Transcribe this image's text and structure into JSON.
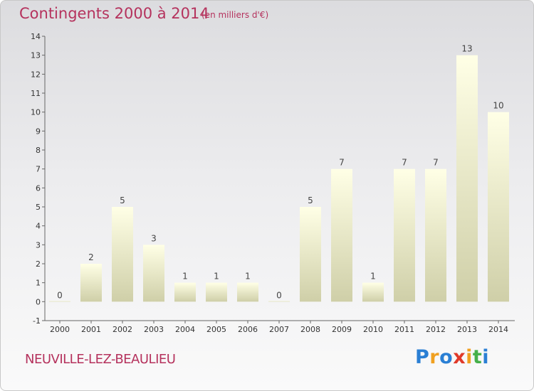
{
  "title": "Contingents 2000 à 2014",
  "unit": "(en milliers d'€)",
  "place": "NEUVILLE-LEZ-BEAULIEU",
  "logo": {
    "letters": [
      "P",
      "r",
      "o",
      "x",
      "i",
      "t",
      "i"
    ],
    "colors": [
      "#2a7fd4",
      "#f0a020",
      "#2a7fd4",
      "#e03a2a",
      "#f0a020",
      "#46b04a",
      "#2a7fd4"
    ]
  },
  "colors": {
    "bar_top": "#ffffe6",
    "bar_bottom": "#cfcfa8",
    "title": "#b5325d"
  },
  "chart_data": {
    "type": "bar",
    "categories": [
      "2000",
      "2001",
      "2002",
      "2003",
      "2004",
      "2005",
      "2006",
      "2007",
      "2008",
      "2009",
      "2010",
      "2011",
      "2012",
      "2013",
      "2014"
    ],
    "values": [
      0,
      2,
      5,
      3,
      1,
      1,
      1,
      0,
      5,
      7,
      1,
      7,
      7,
      13,
      10
    ],
    "ylim": [
      -1,
      14
    ],
    "yticks": [
      "-1",
      "0",
      "1",
      "2",
      "3",
      "4",
      "5",
      "6",
      "7",
      "8",
      "9",
      "10",
      "11",
      "12",
      "13",
      "14"
    ],
    "xlabel": "",
    "ylabel": "",
    "grid": false
  }
}
